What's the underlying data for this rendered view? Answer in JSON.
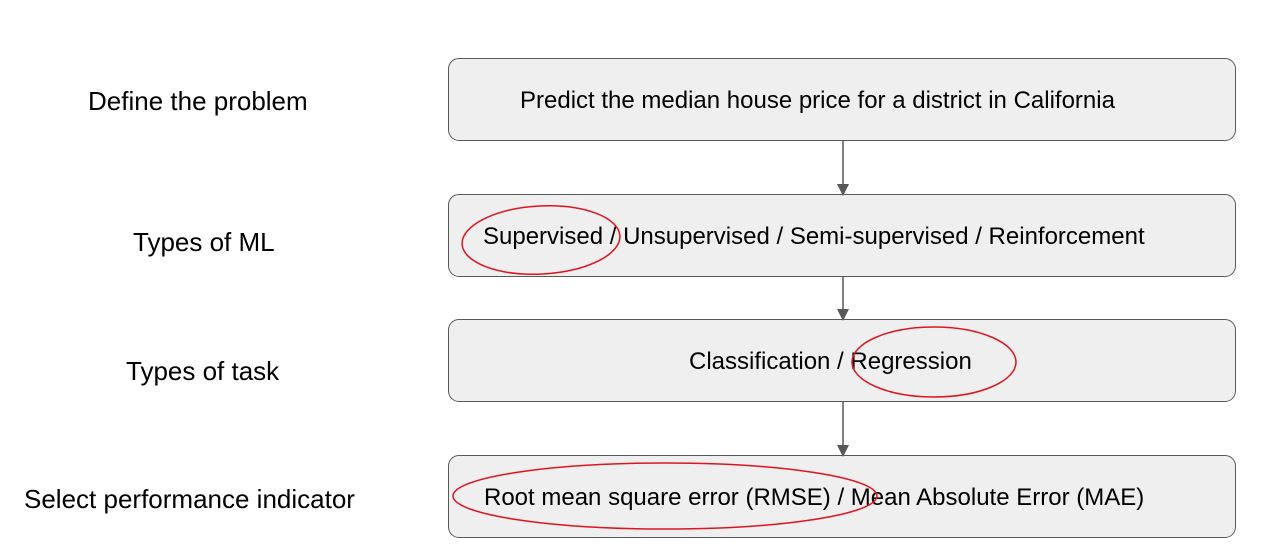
{
  "steps": [
    {
      "label": "Define the problem",
      "box_text": "Predict the median house price for a district in California"
    },
    {
      "label": "Types of ML",
      "box_text": "Supervised / Unsupervised / Semi-supervised / Reinforcement",
      "circled": "Supervised"
    },
    {
      "label": "Types of task",
      "box_text": "Classification / Regression",
      "circled": "Regression"
    },
    {
      "label": "Select performance indicator",
      "box_text": "Root mean square error (RMSE) / Mean Absolute Error (MAE)",
      "circled": "Root mean square error (RMSE)"
    }
  ],
  "colors": {
    "box_fill": "#efefef",
    "box_border": "#595959",
    "arrow": "#595959",
    "highlight_circle": "#e0141e"
  }
}
